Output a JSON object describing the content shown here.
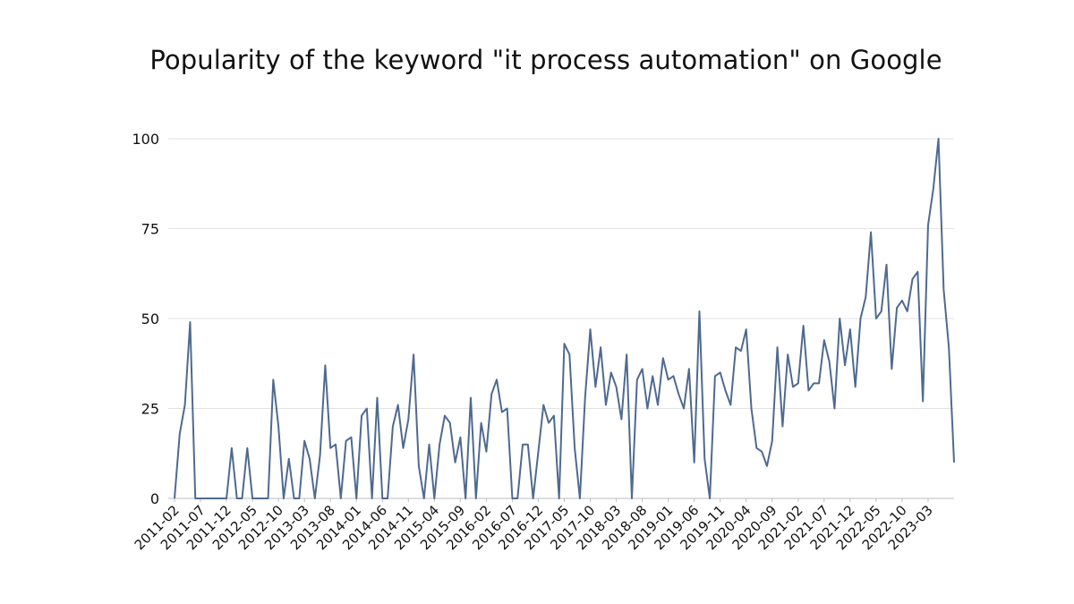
{
  "chart_data": {
    "type": "line",
    "title": "Popularity of the keyword \"it process automation\" on Google",
    "xlabel": "",
    "ylabel": "",
    "ylim": [
      0,
      100
    ],
    "yticks": [
      0,
      25,
      50,
      75,
      100
    ],
    "grid": true,
    "line_color": "#4f6a8f",
    "xtick_labels": [
      "2011-02",
      "2011-07",
      "2011-12",
      "2012-05",
      "2012-10",
      "2013-03",
      "2013-08",
      "2014-01",
      "2014-06",
      "2014-11",
      "2015-04",
      "2015-09",
      "2016-02",
      "2016-07",
      "2016-12",
      "2017-05",
      "2017-10",
      "2018-03",
      "2018-08",
      "2019-01",
      "2019-06",
      "2019-11",
      "2020-04",
      "2020-09",
      "2021-02",
      "2021-07",
      "2021-12",
      "2022-05",
      "2022-10",
      "2023-03"
    ],
    "start": "2011-02",
    "series": [
      {
        "values": [
          0,
          18,
          26,
          49,
          0,
          0,
          0,
          0,
          0,
          0,
          0,
          14,
          0,
          0,
          14,
          0,
          0,
          0,
          0,
          33,
          20,
          0,
          11,
          0,
          0,
          16,
          11,
          0,
          12,
          37,
          14,
          15,
          0,
          16,
          17,
          0,
          23,
          25,
          0,
          28,
          0,
          0,
          20,
          26,
          14,
          22,
          40,
          9,
          0,
          15,
          0,
          15,
          23,
          21,
          10,
          17,
          0,
          28,
          0,
          21,
          13,
          29,
          33,
          24,
          25,
          0,
          0,
          15,
          15,
          0,
          13,
          26,
          21,
          23,
          0,
          43,
          40,
          14,
          0,
          28,
          47,
          31,
          42,
          26,
          35,
          31,
          22,
          40,
          0,
          33,
          36,
          25,
          34,
          26,
          39,
          33,
          34,
          29,
          25,
          36,
          10,
          52,
          11,
          0,
          34,
          35,
          30,
          26,
          42,
          41,
          47,
          25,
          14,
          13,
          9,
          16,
          42,
          20,
          40,
          31,
          32,
          48,
          30,
          32,
          32,
          44,
          38,
          25,
          50,
          37,
          47,
          31,
          50,
          56,
          74,
          50,
          52,
          65,
          36,
          53,
          55,
          52,
          61,
          63,
          27,
          76,
          86,
          100,
          58,
          42,
          10
        ]
      }
    ]
  }
}
